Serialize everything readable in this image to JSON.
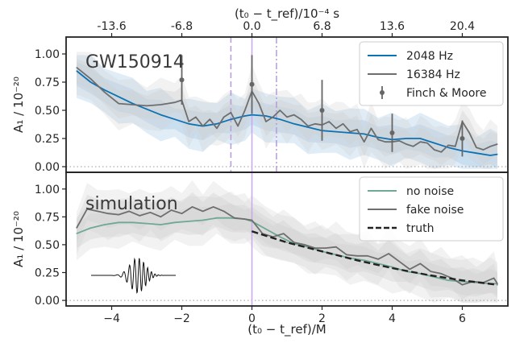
{
  "chart_data": [
    {
      "type": "line",
      "annotation": "GW150914",
      "ylabel": "A₁ / 10⁻²⁰",
      "ylim": [
        -0.05,
        1.15
      ],
      "xlim": [
        -5.3,
        7.3
      ],
      "yticks": [
        "0.00",
        "0.25",
        "0.50",
        "0.75",
        "1.00"
      ],
      "top_axis": {
        "label": "(t₀ − t_ref)/10⁻⁴ s",
        "ticks": [
          {
            "x": -4,
            "label": "-13.6"
          },
          {
            "x": -2,
            "label": "-6.8"
          },
          {
            "x": 0,
            "label": "0.0"
          },
          {
            "x": 2,
            "label": "6.8"
          },
          {
            "x": 4,
            "label": "13.6"
          },
          {
            "x": 6,
            "label": "20.4"
          }
        ]
      },
      "vlines": [
        {
          "x": 0,
          "style": "solid",
          "color": "#c8a8e8"
        },
        {
          "x": -0.6,
          "style": "dashed",
          "color": "#b59bd9"
        },
        {
          "x": 0.7,
          "style": "dashdot",
          "color": "#b59bd9"
        }
      ],
      "series": [
        {
          "name": "2048 Hz",
          "color": "#0b72b5",
          "x": [
            -5.0,
            -4.6,
            -4.2,
            -3.8,
            -3.4,
            -3.0,
            -2.6,
            -2.2,
            -1.8,
            -1.4,
            -1.0,
            -0.6,
            -0.2,
            0.0,
            0.4,
            0.8,
            1.2,
            1.6,
            2.0,
            2.4,
            2.8,
            3.2,
            3.6,
            4.0,
            4.4,
            4.8,
            5.2,
            5.6,
            6.0,
            6.4,
            6.8,
            7.0
          ],
          "y": [
            0.85,
            0.75,
            0.68,
            0.62,
            0.56,
            0.51,
            0.46,
            0.42,
            0.38,
            0.36,
            0.38,
            0.42,
            0.45,
            0.46,
            0.45,
            0.42,
            0.38,
            0.35,
            0.32,
            0.31,
            0.3,
            0.29,
            0.26,
            0.24,
            0.25,
            0.25,
            0.21,
            0.17,
            0.14,
            0.12,
            0.1,
            0.11
          ]
        },
        {
          "name": "16384 Hz",
          "color": "#6e6e6e",
          "x": [
            -5.0,
            -4.6,
            -4.2,
            -3.8,
            -3.4,
            -3.0,
            -2.6,
            -2.2,
            -2.0,
            -1.8,
            -1.6,
            -1.4,
            -1.2,
            -1.0,
            -0.8,
            -0.6,
            -0.4,
            -0.2,
            0.0,
            0.2,
            0.4,
            0.6,
            0.8,
            1.0,
            1.2,
            1.4,
            1.6,
            1.8,
            2.0,
            2.2,
            2.4,
            2.6,
            2.8,
            3.0,
            3.2,
            3.4,
            3.6,
            3.8,
            4.0,
            4.2,
            4.4,
            4.6,
            4.8,
            5.0,
            5.2,
            5.4,
            5.6,
            5.8,
            6.0,
            6.2,
            6.4,
            6.6,
            6.8,
            7.0
          ],
          "y": [
            0.88,
            0.78,
            0.66,
            0.56,
            0.55,
            0.54,
            0.55,
            0.57,
            0.59,
            0.4,
            0.44,
            0.36,
            0.42,
            0.34,
            0.44,
            0.48,
            0.36,
            0.5,
            0.67,
            0.56,
            0.4,
            0.44,
            0.5,
            0.44,
            0.46,
            0.42,
            0.36,
            0.38,
            0.37,
            0.4,
            0.34,
            0.38,
            0.31,
            0.33,
            0.22,
            0.34,
            0.24,
            0.22,
            0.22,
            0.23,
            0.2,
            0.18,
            0.22,
            0.21,
            0.15,
            0.13,
            0.19,
            0.18,
            0.4,
            0.3,
            0.17,
            0.15,
            0.18,
            0.2
          ]
        }
      ],
      "errorbars": {
        "name": "Finch & Moore",
        "color": "#666666",
        "x": [
          -2,
          0,
          2,
          4,
          6
        ],
        "y": [
          0.77,
          0.73,
          0.5,
          0.3,
          0.25
        ],
        "yerr": [
          0.22,
          0.26,
          0.27,
          0.17,
          0.16
        ]
      },
      "legend": {
        "position": "top-right",
        "items": [
          "2048 Hz",
          "16384 Hz",
          "Finch & Moore"
        ]
      }
    },
    {
      "type": "line",
      "annotation": "simulation",
      "ylabel": "A₁ / 10⁻²⁰",
      "xlabel": "(t₀ − t_ref)/M",
      "ylim": [
        -0.05,
        1.15
      ],
      "xlim": [
        -5.3,
        7.3
      ],
      "yticks": [
        "0.00",
        "0.25",
        "0.50",
        "0.75",
        "1.00"
      ],
      "xticks": [
        "−4",
        "−2",
        "0",
        "2",
        "4",
        "6"
      ],
      "vlines": [
        {
          "x": 0,
          "style": "solid",
          "color": "#c8a8e8"
        }
      ],
      "series": [
        {
          "name": "no noise",
          "color": "#6fa893",
          "x": [
            -5.0,
            -4.6,
            -4.2,
            -3.8,
            -3.4,
            -3.0,
            -2.6,
            -2.2,
            -1.8,
            -1.4,
            -1.0,
            -0.6,
            -0.2,
            0.0,
            0.4,
            0.8,
            1.2,
            1.6,
            2.0,
            2.4,
            2.8,
            3.2,
            3.6,
            4.0,
            4.4,
            4.8,
            5.2,
            5.6,
            6.0,
            6.4,
            6.8,
            7.0
          ],
          "y": [
            0.6,
            0.65,
            0.68,
            0.7,
            0.7,
            0.69,
            0.68,
            0.7,
            0.71,
            0.72,
            0.74,
            0.74,
            0.73,
            0.71,
            0.64,
            0.57,
            0.51,
            0.48,
            0.44,
            0.41,
            0.38,
            0.36,
            0.33,
            0.3,
            0.26,
            0.24,
            0.21,
            0.18,
            0.17,
            0.16,
            0.15,
            0.15
          ]
        },
        {
          "name": "fake noise",
          "color": "#6e6e6e",
          "x": [
            -5.0,
            -4.7,
            -4.4,
            -4.1,
            -3.8,
            -3.5,
            -3.2,
            -2.9,
            -2.6,
            -2.3,
            -2.0,
            -1.7,
            -1.4,
            -1.1,
            -0.8,
            -0.5,
            -0.2,
            0.0,
            0.3,
            0.6,
            0.9,
            1.2,
            1.5,
            1.8,
            2.1,
            2.4,
            2.7,
            3.0,
            3.3,
            3.6,
            3.9,
            4.2,
            4.5,
            4.8,
            5.1,
            5.4,
            5.7,
            6.0,
            6.3,
            6.6,
            6.9,
            7.0
          ],
          "y": [
            0.65,
            0.82,
            0.8,
            0.78,
            0.77,
            0.8,
            0.76,
            0.79,
            0.75,
            0.81,
            0.78,
            0.84,
            0.8,
            0.84,
            0.8,
            0.74,
            0.73,
            0.72,
            0.6,
            0.57,
            0.6,
            0.52,
            0.5,
            0.47,
            0.47,
            0.48,
            0.41,
            0.4,
            0.4,
            0.37,
            0.42,
            0.35,
            0.28,
            0.33,
            0.26,
            0.24,
            0.2,
            0.14,
            0.17,
            0.16,
            0.2,
            0.15
          ]
        },
        {
          "name": "truth",
          "color": "#222222",
          "style": "dashed",
          "x": [
            0,
            1,
            2,
            3,
            4,
            5,
            6,
            7
          ],
          "y": [
            0.62,
            0.52,
            0.44,
            0.36,
            0.29,
            0.23,
            0.18,
            0.14
          ]
        }
      ],
      "legend": {
        "position": "top-right",
        "items": [
          "no noise",
          "fake noise",
          "truth"
        ]
      }
    }
  ]
}
